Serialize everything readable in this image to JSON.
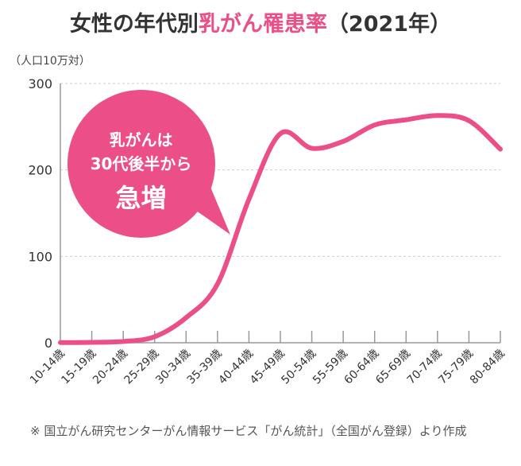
{
  "chart_data": {
    "type": "line",
    "title_prefix": "女性の年代別",
    "title_highlight": "乳がん罹患率",
    "title_suffix": "（2021年）",
    "ylabel": "（人口10万対）",
    "xlabel": "",
    "ylim": [
      0,
      300
    ],
    "yticks": [
      "0",
      "100",
      "200",
      "300"
    ],
    "ytick_values": [
      0,
      100,
      200,
      300
    ],
    "grid": true,
    "categories": [
      "10-14歳",
      "15-19歳",
      "20-24歳",
      "25-29歳",
      "30-34歳",
      "35-39歳",
      "40-44歳",
      "45-49歳",
      "50-54歳",
      "55-59歳",
      "60-64歳",
      "65-69歳",
      "70-74歳",
      "75-79歳",
      "80-84歳"
    ],
    "values": [
      0.2,
      0.5,
      1.5,
      7,
      29,
      68,
      166,
      242,
      225,
      233,
      252,
      258,
      263,
      257,
      224
    ],
    "line_color": "#ec4f87",
    "annotation": {
      "line1": "乳がんは",
      "line2": "30代後半から",
      "line3": "急増"
    }
  },
  "footnote": "※ 国立がん研究センターがん情報サービス「がん統計」（全国がん登録）より作成"
}
